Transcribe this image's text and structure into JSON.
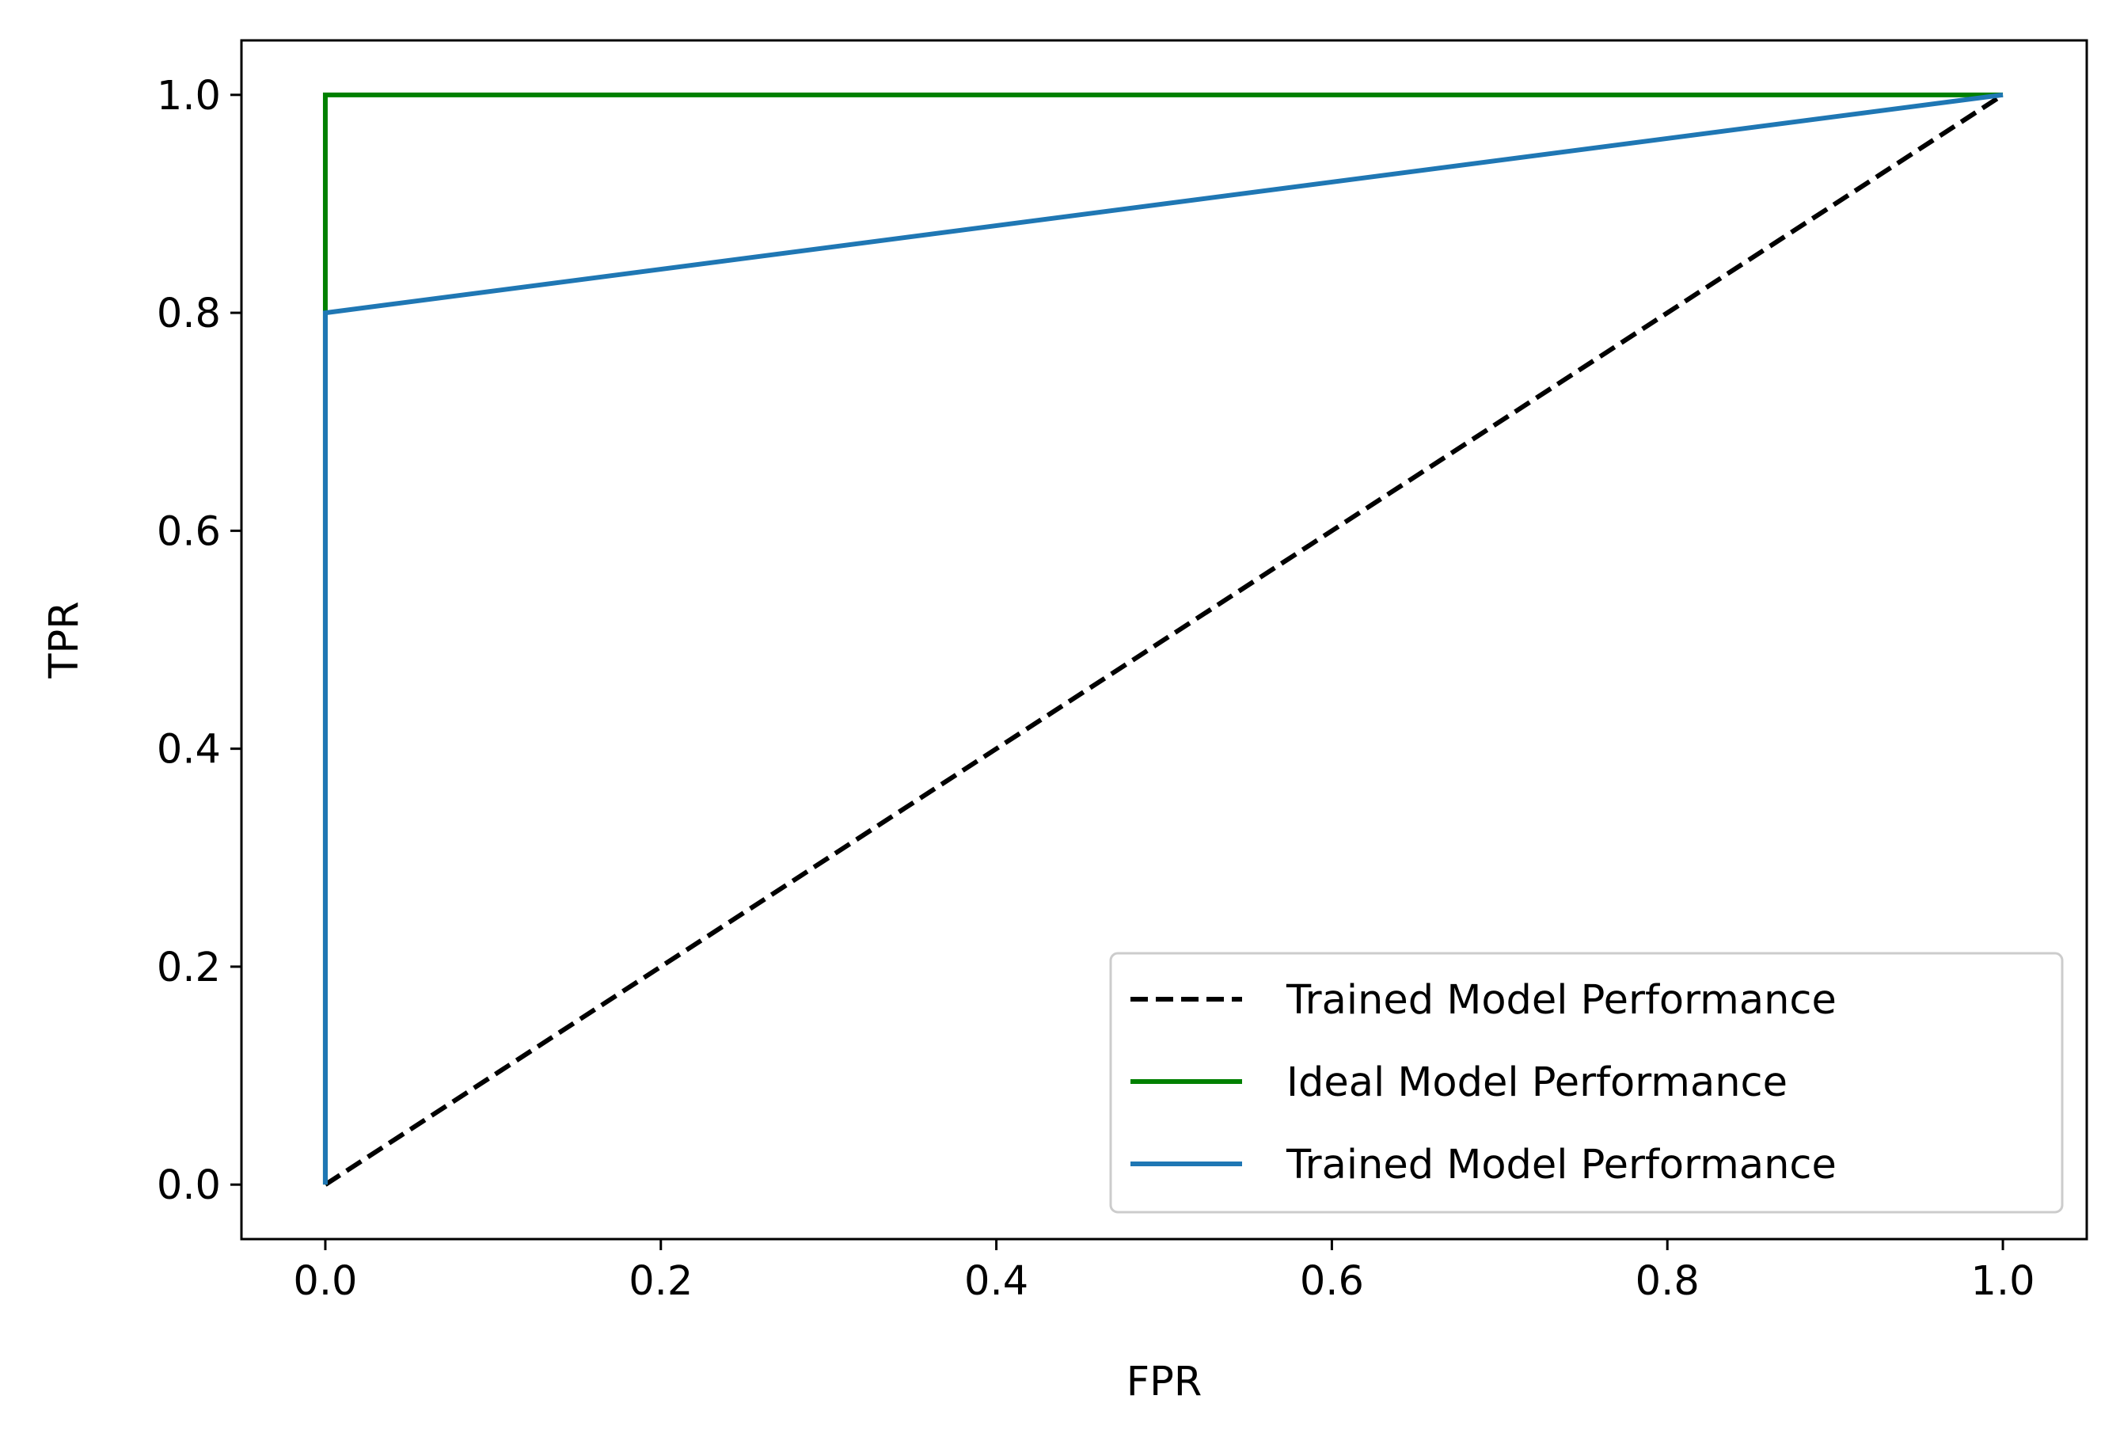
{
  "chart_data": {
    "type": "line",
    "title": "",
    "xlabel": "FPR",
    "ylabel": "TPR",
    "xlim": [
      -0.05,
      1.05
    ],
    "ylim": [
      -0.05,
      1.05
    ],
    "xticks": [
      0.0,
      0.2,
      0.4,
      0.6,
      0.8,
      1.0
    ],
    "yticks": [
      0.0,
      0.2,
      0.4,
      0.6,
      0.8,
      1.0
    ],
    "xtick_labels": [
      "0.0",
      "0.2",
      "0.4",
      "0.6",
      "0.8",
      "1.0"
    ],
    "ytick_labels": [
      "0.0",
      "0.2",
      "0.4",
      "0.6",
      "0.8",
      "1.0"
    ],
    "grid": false,
    "legend_position": "bottom-right",
    "series": [
      {
        "name": "Trained Model Performance",
        "x": [
          0,
          1
        ],
        "y": [
          0,
          1
        ],
        "color": "#000000",
        "style": "dashed"
      },
      {
        "name": "Ideal Model Performance",
        "x": [
          0,
          0,
          1
        ],
        "y": [
          0,
          1,
          1
        ],
        "color": "#008000",
        "style": "solid"
      },
      {
        "name": "Trained Model Performance",
        "x": [
          0,
          0,
          1
        ],
        "y": [
          0,
          0.8,
          1
        ],
        "color": "#1f77b4",
        "style": "solid"
      }
    ]
  }
}
